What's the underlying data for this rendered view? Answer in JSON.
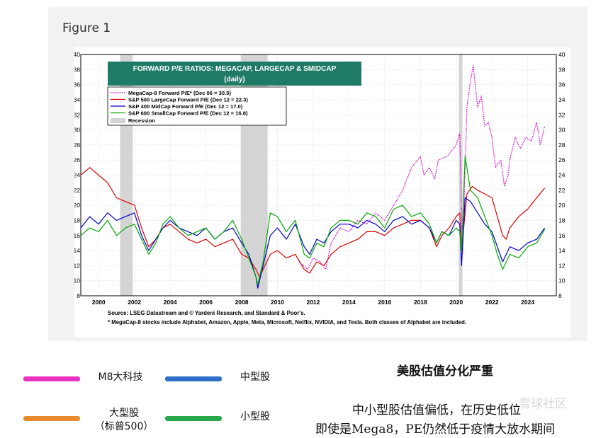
{
  "figure_label": "Figure 1",
  "chart_data": {
    "type": "line",
    "title": "FORWARD P/E RATIOS: MEGACAP, LARGECAP & SMIDCAP",
    "subtitle": "(daily)",
    "xlim": [
      1999,
      2025.6
    ],
    "ylim": [
      8,
      40
    ],
    "x_ticks": [
      2000,
      2002,
      2004,
      2006,
      2008,
      2010,
      2012,
      2014,
      2016,
      2018,
      2020,
      2022,
      2024
    ],
    "y_ticks": [
      8,
      10,
      12,
      14,
      16,
      18,
      20,
      22,
      24,
      26,
      28,
      30,
      32,
      34,
      36,
      38,
      40
    ],
    "grid": true,
    "legend_position": "top-left",
    "recessions": [
      [
        2001.2,
        2001.9
      ],
      [
        2007.95,
        2009.45
      ],
      [
        2020.15,
        2020.35
      ]
    ],
    "recession_label": "Recession",
    "series": [
      {
        "name": "MegaCap-8 Forward P/E* (Dec 06 = 30.5)",
        "color": "#d600d6",
        "dashed": true,
        "x": [
          2011.2,
          2011.7,
          2012.0,
          2012.4,
          2012.7,
          2013.0,
          2013.5,
          2014.0,
          2014.5,
          2015.0,
          2015.5,
          2016.0,
          2016.5,
          2017.0,
          2017.5,
          2018.0,
          2018.2,
          2018.5,
          2018.8,
          2019.0,
          2019.5,
          2020.0,
          2020.2,
          2020.35,
          2020.6,
          2020.8,
          2020.95,
          2021.2,
          2021.4,
          2021.6,
          2021.8,
          2022.0,
          2022.2,
          2022.5,
          2022.7,
          2022.9,
          2023.0,
          2023.3,
          2023.6,
          2023.9,
          2024.2,
          2024.5,
          2024.7,
          2024.95
        ],
        "y": [
          12.5,
          11.5,
          13.0,
          12.5,
          11.5,
          15.0,
          17.0,
          16.5,
          18.0,
          17.5,
          19.0,
          18.0,
          20.0,
          22.0,
          25.0,
          26.5,
          24.0,
          25.0,
          23.5,
          26.0,
          26.5,
          28.0,
          29.5,
          13.5,
          33.0,
          36.5,
          38.5,
          33.0,
          34.5,
          30.5,
          31.0,
          29.0,
          25.0,
          26.0,
          22.5,
          24.0,
          26.0,
          29.0,
          27.5,
          29.0,
          28.5,
          31.0,
          28.0,
          30.5
        ]
      },
      {
        "name": "S&P 500 LargeCap Forward P/E (Dec 12 = 22.3)",
        "color": "#e00000",
        "dashed": false,
        "x": [
          1999.0,
          1999.5,
          2000.0,
          2000.5,
          2001.0,
          2001.5,
          2002.0,
          2002.4,
          2002.8,
          2003.2,
          2003.6,
          2004.0,
          2004.5,
          2005.0,
          2005.5,
          2006.0,
          2006.5,
          2007.0,
          2007.5,
          2008.0,
          2008.4,
          2008.8,
          2009.0,
          2009.2,
          2009.6,
          2010.0,
          2010.5,
          2011.0,
          2011.5,
          2011.8,
          2012.2,
          2012.6,
          2013.0,
          2013.5,
          2014.0,
          2014.5,
          2015.0,
          2015.5,
          2016.0,
          2016.5,
          2017.0,
          2017.5,
          2018.0,
          2018.5,
          2018.9,
          2019.2,
          2019.6,
          2020.0,
          2020.2,
          2020.3,
          2020.6,
          2020.9,
          2021.2,
          2021.6,
          2022.0,
          2022.3,
          2022.6,
          2022.8,
          2023.0,
          2023.5,
          2024.0,
          2024.5,
          2024.95
        ],
        "y": [
          24.0,
          25.0,
          24.0,
          23.0,
          21.0,
          20.5,
          20.0,
          17.0,
          14.5,
          15.5,
          17.0,
          17.5,
          16.5,
          15.5,
          15.0,
          15.5,
          14.5,
          15.0,
          15.5,
          13.5,
          13.0,
          11.5,
          10.5,
          11.5,
          13.5,
          14.0,
          13.0,
          13.5,
          11.5,
          11.0,
          12.5,
          12.0,
          13.5,
          14.5,
          15.0,
          15.5,
          16.5,
          16.5,
          16.0,
          17.0,
          17.5,
          18.0,
          18.0,
          17.0,
          14.5,
          16.0,
          17.0,
          18.5,
          19.0,
          14.0,
          21.5,
          22.5,
          22.0,
          21.5,
          21.0,
          18.5,
          16.0,
          15.5,
          17.0,
          18.5,
          19.5,
          21.0,
          22.3
        ]
      },
      {
        "name": "S&P 400 MidCap Forward P/E (Dec 12 = 17.0)",
        "color": "#0000cc",
        "dashed": false,
        "x": [
          1999.0,
          1999.5,
          2000.0,
          2000.5,
          2001.0,
          2001.5,
          2002.0,
          2002.4,
          2002.8,
          2003.2,
          2003.6,
          2004.0,
          2004.5,
          2005.0,
          2005.5,
          2006.0,
          2006.5,
          2007.0,
          2007.5,
          2008.0,
          2008.4,
          2008.8,
          2008.9,
          2009.2,
          2009.6,
          2010.0,
          2010.5,
          2011.0,
          2011.5,
          2011.8,
          2012.2,
          2012.6,
          2013.0,
          2013.5,
          2014.0,
          2014.5,
          2015.0,
          2015.5,
          2016.0,
          2016.5,
          2017.0,
          2017.5,
          2018.0,
          2018.5,
          2018.9,
          2019.2,
          2019.6,
          2020.0,
          2020.2,
          2020.3,
          2020.5,
          2020.8,
          2021.2,
          2021.6,
          2022.0,
          2022.3,
          2022.6,
          2022.8,
          2023.0,
          2023.5,
          2024.0,
          2024.5,
          2024.95
        ],
        "y": [
          17.0,
          18.5,
          17.5,
          19.0,
          18.0,
          18.5,
          19.0,
          16.0,
          14.0,
          15.5,
          17.0,
          18.0,
          17.0,
          16.5,
          16.0,
          17.0,
          15.5,
          16.5,
          17.0,
          15.0,
          13.5,
          10.5,
          9.0,
          12.0,
          16.0,
          17.0,
          15.5,
          17.5,
          14.5,
          13.5,
          15.5,
          15.0,
          16.5,
          17.5,
          17.5,
          17.0,
          18.0,
          17.5,
          16.5,
          18.0,
          18.5,
          17.5,
          18.0,
          17.0,
          15.0,
          16.5,
          16.0,
          18.0,
          17.5,
          12.0,
          21.0,
          20.5,
          19.0,
          17.5,
          16.5,
          14.5,
          12.5,
          13.5,
          14.5,
          14.0,
          15.0,
          15.5,
          17.0
        ]
      },
      {
        "name": "S&P 600 SmallCap Forward P/E (Dec 12 = 16.8)",
        "color": "#00aa00",
        "dashed": false,
        "x": [
          1999.0,
          1999.5,
          2000.0,
          2000.5,
          2001.0,
          2001.5,
          2002.0,
          2002.4,
          2002.8,
          2003.2,
          2003.6,
          2004.0,
          2004.5,
          2005.0,
          2005.5,
          2006.0,
          2006.5,
          2007.0,
          2007.5,
          2008.0,
          2008.4,
          2008.8,
          2008.9,
          2009.2,
          2009.6,
          2010.0,
          2010.5,
          2011.0,
          2011.5,
          2011.8,
          2012.2,
          2012.6,
          2013.0,
          2013.5,
          2014.0,
          2014.5,
          2015.0,
          2015.5,
          2016.0,
          2016.5,
          2017.0,
          2017.5,
          2018.0,
          2018.5,
          2018.9,
          2019.2,
          2019.6,
          2020.0,
          2020.2,
          2020.3,
          2020.5,
          2020.8,
          2021.2,
          2021.6,
          2022.0,
          2022.3,
          2022.6,
          2022.8,
          2023.0,
          2023.5,
          2024.0,
          2024.5,
          2024.95
        ],
        "y": [
          16.0,
          17.0,
          16.5,
          18.0,
          16.0,
          17.0,
          17.5,
          15.5,
          13.5,
          15.0,
          17.5,
          18.5,
          17.0,
          16.0,
          16.5,
          17.0,
          15.5,
          16.5,
          18.0,
          15.5,
          13.0,
          10.5,
          9.5,
          12.5,
          19.0,
          18.5,
          16.5,
          18.0,
          13.5,
          13.0,
          15.0,
          14.5,
          17.0,
          18.0,
          18.0,
          17.5,
          19.0,
          18.5,
          17.0,
          19.5,
          20.0,
          18.5,
          19.0,
          17.5,
          15.0,
          16.5,
          16.0,
          17.0,
          16.5,
          14.0,
          26.5,
          22.0,
          21.0,
          18.5,
          16.0,
          13.5,
          11.5,
          12.5,
          13.5,
          13.0,
          14.5,
          15.0,
          16.8
        ]
      }
    ],
    "source_note": "Source: LSEG Datastream and © Yardeni Research, and Standard & Poor's.",
    "footnote": "* MegaCap-8 stocks include Alphabet, Amazon, Apple, Meta, Microsoft, Netflix, NVIDIA, and Tesla. Both classes of Alphabet are included."
  },
  "legend": {
    "items": [
      {
        "label": "M8大科技",
        "color": "#e832c4"
      },
      {
        "label": "中型股",
        "color": "#2f6fc7"
      },
      {
        "label": "大型股",
        "sublabel": "（标普500）",
        "color": "#e88a2e"
      },
      {
        "label": "小型股",
        "color": "#28a84a"
      }
    ]
  },
  "notes": {
    "title": "美股估值分化严重",
    "line1": "中小型股估值偏低，在历史低位",
    "line2": "即使是Mega8，PE仍然低于疫情大放水期间"
  },
  "watermark": "雪球社区"
}
